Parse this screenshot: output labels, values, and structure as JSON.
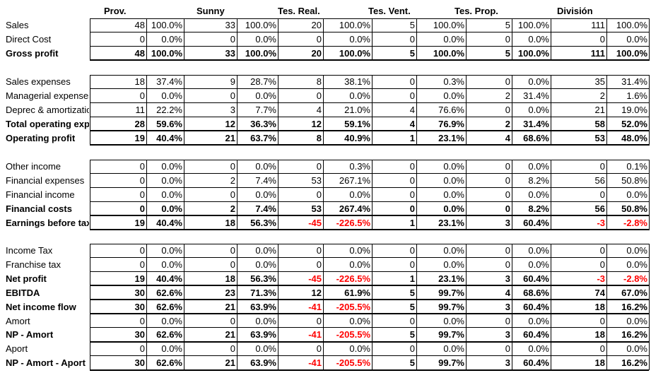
{
  "headers": [
    "Prov.",
    "Sunny",
    "Tes. Real.",
    "Tes. Vent.",
    "Tes. Prop.",
    "División"
  ],
  "sections": [
    {
      "rows": [
        {
          "label": "Sales",
          "bold": false,
          "v": [
            [
              "48",
              "100.0%"
            ],
            [
              "33",
              "100.0%"
            ],
            [
              "20",
              "100.0%"
            ],
            [
              "5",
              "100.0%"
            ],
            [
              "5",
              "100.0%"
            ],
            [
              "111",
              "100.0%"
            ]
          ]
        },
        {
          "label": "Direct Cost",
          "bold": false,
          "v": [
            [
              "0",
              "0.0%"
            ],
            [
              "0",
              "0.0%"
            ],
            [
              "0",
              "0.0%"
            ],
            [
              "0",
              "0.0%"
            ],
            [
              "0",
              "0.0%"
            ],
            [
              "0",
              "0.0%"
            ]
          ]
        },
        {
          "label": "Gross profit",
          "bold": true,
          "v": [
            [
              "48",
              "100.0%"
            ],
            [
              "33",
              "100.0%"
            ],
            [
              "20",
              "100.0%"
            ],
            [
              "5",
              "100.0%"
            ],
            [
              "5",
              "100.0%"
            ],
            [
              "111",
              "100.0%"
            ]
          ]
        }
      ]
    },
    {
      "rows": [
        {
          "label": "Sales expenses",
          "bold": false,
          "v": [
            [
              "18",
              "37.4%"
            ],
            [
              "9",
              "28.7%"
            ],
            [
              "8",
              "38.1%"
            ],
            [
              "0",
              "0.3%"
            ],
            [
              "0",
              "0.0%"
            ],
            [
              "35",
              "31.4%"
            ]
          ]
        },
        {
          "label": "Managerial expenses",
          "bold": false,
          "v": [
            [
              "0",
              "0.0%"
            ],
            [
              "0",
              "0.0%"
            ],
            [
              "0",
              "0.0%"
            ],
            [
              "0",
              "0.0%"
            ],
            [
              "2",
              "31.4%"
            ],
            [
              "2",
              "1.6%"
            ]
          ]
        },
        {
          "label": "Deprec & amortization",
          "bold": false,
          "v": [
            [
              "11",
              "22.2%"
            ],
            [
              "3",
              "7.7%"
            ],
            [
              "4",
              "21.0%"
            ],
            [
              "4",
              "76.6%"
            ],
            [
              "0",
              "0.0%"
            ],
            [
              "21",
              "19.0%"
            ]
          ]
        },
        {
          "label": "Total operating expenses",
          "bold": true,
          "v": [
            [
              "28",
              "59.6%"
            ],
            [
              "12",
              "36.3%"
            ],
            [
              "12",
              "59.1%"
            ],
            [
              "4",
              "76.9%"
            ],
            [
              "2",
              "31.4%"
            ],
            [
              "58",
              "52.0%"
            ]
          ]
        },
        {
          "label": "Operating profit",
          "bold": true,
          "v": [
            [
              "19",
              "40.4%"
            ],
            [
              "21",
              "63.7%"
            ],
            [
              "8",
              "40.9%"
            ],
            [
              "1",
              "23.1%"
            ],
            [
              "4",
              "68.6%"
            ],
            [
              "53",
              "48.0%"
            ]
          ]
        }
      ]
    },
    {
      "rows": [
        {
          "label": "Other income",
          "bold": false,
          "v": [
            [
              "0",
              "0.0%"
            ],
            [
              "0",
              "0.0%"
            ],
            [
              "0",
              "0.3%"
            ],
            [
              "0",
              "0.0%"
            ],
            [
              "0",
              "0.0%"
            ],
            [
              "0",
              "0.1%"
            ]
          ]
        },
        {
          "label": "Financial expenses",
          "bold": false,
          "v": [
            [
              "0",
              "0.0%"
            ],
            [
              "2",
              "7.4%"
            ],
            [
              "53",
              "267.1%"
            ],
            [
              "0",
              "0.0%"
            ],
            [
              "0",
              "8.2%"
            ],
            [
              "56",
              "50.8%"
            ]
          ]
        },
        {
          "label": "Financial income",
          "bold": false,
          "v": [
            [
              "0",
              "0.0%"
            ],
            [
              "0",
              "0.0%"
            ],
            [
              "0",
              "0.0%"
            ],
            [
              "0",
              "0.0%"
            ],
            [
              "0",
              "0.0%"
            ],
            [
              "0",
              "0.0%"
            ]
          ]
        },
        {
          "label": "Financial costs",
          "bold": true,
          "v": [
            [
              "0",
              "0.0%"
            ],
            [
              "2",
              "7.4%"
            ],
            [
              "53",
              "267.4%"
            ],
            [
              "0",
              "0.0%"
            ],
            [
              "0",
              "8.2%"
            ],
            [
              "56",
              "50.8%"
            ]
          ]
        },
        {
          "label": "Earnings before taxes",
          "bold": true,
          "v": [
            [
              "19",
              "40.4%"
            ],
            [
              "18",
              "56.3%"
            ],
            [
              "-45",
              "-226.5%"
            ],
            [
              "1",
              "23.1%"
            ],
            [
              "3",
              "60.4%"
            ],
            [
              "-3",
              "-2.8%"
            ]
          ]
        }
      ]
    },
    {
      "rows": [
        {
          "label": "Income Tax",
          "bold": false,
          "v": [
            [
              "0",
              "0.0%"
            ],
            [
              "0",
              "0.0%"
            ],
            [
              "0",
              "0.0%"
            ],
            [
              "0",
              "0.0%"
            ],
            [
              "0",
              "0.0%"
            ],
            [
              "0",
              "0.0%"
            ]
          ]
        },
        {
          "label": "Franchise tax",
          "bold": false,
          "v": [
            [
              "0",
              "0.0%"
            ],
            [
              "0",
              "0.0%"
            ],
            [
              "0",
              "0.0%"
            ],
            [
              "0",
              "0.0%"
            ],
            [
              "0",
              "0.0%"
            ],
            [
              "0",
              "0.0%"
            ]
          ]
        },
        {
          "label": "Net profit",
          "bold": true,
          "v": [
            [
              "19",
              "40.4%"
            ],
            [
              "18",
              "56.3%"
            ],
            [
              "-45",
              "-226.5%"
            ],
            [
              "1",
              "23.1%"
            ],
            [
              "3",
              "60.4%"
            ],
            [
              "-3",
              "-2.8%"
            ]
          ]
        },
        {
          "label": "EBITDA",
          "bold": true,
          "v": [
            [
              "30",
              "62.6%"
            ],
            [
              "23",
              "71.3%"
            ],
            [
              "12",
              "61.9%"
            ],
            [
              "5",
              "99.7%"
            ],
            [
              "4",
              "68.6%"
            ],
            [
              "74",
              "67.0%"
            ]
          ]
        },
        {
          "label": "Net income flow",
          "bold": true,
          "v": [
            [
              "30",
              "62.6%"
            ],
            [
              "21",
              "63.9%"
            ],
            [
              "-41",
              "-205.5%"
            ],
            [
              "5",
              "99.7%"
            ],
            [
              "3",
              "60.4%"
            ],
            [
              "18",
              "16.2%"
            ]
          ]
        },
        {
          "label": "Amort",
          "bold": false,
          "v": [
            [
              "0",
              "0.0%"
            ],
            [
              "0",
              "0.0%"
            ],
            [
              "0",
              "0.0%"
            ],
            [
              "0",
              "0.0%"
            ],
            [
              "0",
              "0.0%"
            ],
            [
              "0",
              "0.0%"
            ]
          ]
        },
        {
          "label": "NP - Amort",
          "bold": true,
          "v": [
            [
              "30",
              "62.6%"
            ],
            [
              "21",
              "63.9%"
            ],
            [
              "-41",
              "-205.5%"
            ],
            [
              "5",
              "99.7%"
            ],
            [
              "3",
              "60.4%"
            ],
            [
              "18",
              "16.2%"
            ]
          ]
        },
        {
          "label": "Aport",
          "bold": false,
          "v": [
            [
              "0",
              "0.0%"
            ],
            [
              "0",
              "0.0%"
            ],
            [
              "0",
              "0.0%"
            ],
            [
              "0",
              "0.0%"
            ],
            [
              "0",
              "0.0%"
            ],
            [
              "0",
              "0.0%"
            ]
          ]
        },
        {
          "label": "NP - Amort - Aport",
          "bold": true,
          "v": [
            [
              "30",
              "62.6%"
            ],
            [
              "21",
              "63.9%"
            ],
            [
              "-41",
              "-205.5%"
            ],
            [
              "5",
              "99.7%"
            ],
            [
              "3",
              "60.4%"
            ],
            [
              "18",
              "16.2%"
            ]
          ]
        }
      ]
    }
  ],
  "colors": {
    "negative": "#ff0000",
    "text": "#000000",
    "border": "#000000"
  }
}
